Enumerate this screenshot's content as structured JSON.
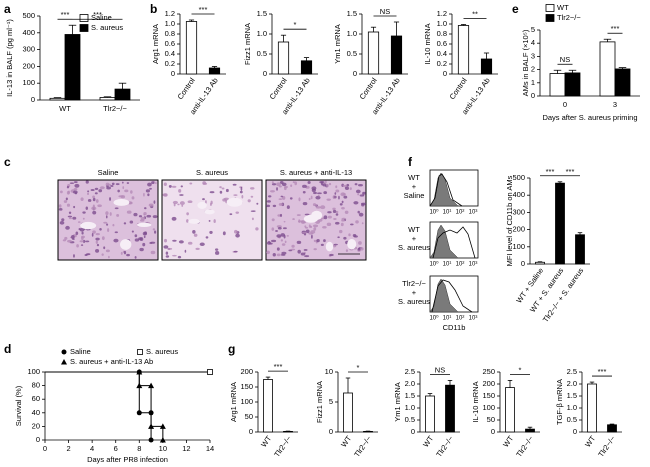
{
  "panel_labels": [
    "a",
    "b",
    "c",
    "d",
    "e",
    "f",
    "g"
  ],
  "histology": {
    "labels": [
      "Saline",
      "S. aureus",
      "S. aureus + anti-IL-13"
    ]
  },
  "flow": {
    "rows": [
      [
        "WT",
        "+",
        "Saline"
      ],
      [
        "WT",
        "+",
        "S. aureus"
      ],
      [
        "Tlr2−/−",
        "+",
        "S. aureus"
      ]
    ],
    "xlabel": "CD11b",
    "xticks": [
      "10⁰",
      "10¹",
      "10²",
      "10³"
    ]
  },
  "chart_data": [
    {
      "type": "bar",
      "ylabel": "IL-13 in BALF (pg ml⁻¹)",
      "categories": [
        "WT",
        "Tlr2−/−"
      ],
      "series": [
        {
          "name": "Saline",
          "color": "#ffffff",
          "values": [
            10,
            15
          ],
          "errors": [
            4,
            4
          ]
        },
        {
          "name": "S. aureus",
          "color": "#000000",
          "values": [
            390,
            65
          ],
          "errors": [
            55,
            35
          ]
        }
      ],
      "ylim": [
        0,
        500
      ],
      "yticks": [
        0,
        100,
        200,
        300,
        400,
        500
      ],
      "annotations": [
        "***",
        "***"
      ]
    },
    {
      "type": "bar",
      "ylabel": "Arg1 mRNA",
      "categories": [
        "Control",
        "anti-IL-13 Ab"
      ],
      "values": [
        1.05,
        0.12
      ],
      "errors": [
        0.03,
        0.03
      ],
      "colors": [
        "#ffffff",
        "#000000"
      ],
      "ylim": [
        0,
        1.2
      ],
      "yticks": [
        0,
        0.2,
        0.4,
        0.6,
        0.8,
        {
          "value": 1,
          "label": "1.0"
        },
        1.2
      ],
      "annotations": [
        "***"
      ]
    },
    {
      "type": "bar",
      "ylabel": "Fizz1 mRNA",
      "categories": [
        "Control",
        "anti-IL-13 Ab"
      ],
      "values": [
        0.8,
        0.33
      ],
      "errors": [
        0.17,
        0.08
      ],
      "colors": [
        "#ffffff",
        "#000000"
      ],
      "ylim": [
        0,
        1.5
      ],
      "yticks": [
        0,
        0.5,
        {
          "value": 1,
          "label": "1.0"
        },
        1.5
      ],
      "annotations": [
        "*"
      ]
    },
    {
      "type": "bar",
      "ylabel": "Ym1 mRNA",
      "categories": [
        "Control",
        "anti-IL-13 Ab"
      ],
      "values": [
        1.05,
        0.95
      ],
      "errors": [
        0.12,
        0.35
      ],
      "colors": [
        "#ffffff",
        "#000000"
      ],
      "ylim": [
        0,
        1.5
      ],
      "yticks": [
        0,
        0.5,
        {
          "value": 1,
          "label": "1.0"
        },
        1.5
      ],
      "annotations": [
        "NS"
      ]
    },
    {
      "type": "bar",
      "ylabel": "IL-10 mRNA",
      "categories": [
        "Control",
        "anti-IL-13 Ab"
      ],
      "values": [
        0.97,
        0.3
      ],
      "errors": [
        0.02,
        0.12
      ],
      "colors": [
        "#ffffff",
        "#000000"
      ],
      "ylim": [
        0,
        1.2
      ],
      "yticks": [
        0,
        0.2,
        0.4,
        0.6,
        0.8,
        {
          "value": 1,
          "label": "1.0"
        },
        1.2
      ],
      "annotations": [
        "**"
      ]
    },
    {
      "type": "bar",
      "ylabel": "AMs in BALF (×10⁵)",
      "xlabel": "Days after S. aureus priming",
      "categories": [
        "0",
        "3"
      ],
      "series": [
        {
          "name": "WT",
          "color": "#ffffff",
          "values": [
            1.7,
            4.1
          ],
          "errors": [
            0.25,
            0.2
          ]
        },
        {
          "name": "Tlr2−/−",
          "color": "#000000",
          "values": [
            1.75,
            2.05
          ],
          "errors": [
            0.2,
            0.1
          ]
        }
      ],
      "ylim": [
        0,
        5
      ],
      "yticks": [
        0,
        1,
        2,
        3,
        4,
        5
      ],
      "annotations": [
        "NS",
        "***"
      ]
    },
    {
      "type": "bar",
      "ylabel": "MFI level of CD11b on AMs",
      "categories": [
        "WT + Saline",
        "WT + S. aureus",
        "Tlr2−/− + S. aureus"
      ],
      "values": [
        10,
        470,
        170
      ],
      "errors": [
        3,
        8,
        12
      ],
      "colors": [
        "#ffffff",
        "#000000",
        "#000000"
      ],
      "ylim": [
        0,
        500
      ],
      "yticks": [
        0,
        100,
        200,
        300,
        400,
        500
      ],
      "annotations": [
        "***",
        "***"
      ]
    },
    {
      "type": "line",
      "xlabel": "Days after PR8 infection",
      "ylabel": "Survival (%)",
      "series": [
        {
          "name": "Saline",
          "color": "#000000",
          "marker": "circle",
          "x": [
            0,
            8,
            8,
            9,
            9
          ],
          "values": [
            100,
            100,
            40,
            40,
            0
          ]
        },
        {
          "name": "S. aureus",
          "color": "#000000",
          "marker": "square-open",
          "x": [
            0,
            14
          ],
          "values": [
            100,
            100
          ]
        },
        {
          "name": "S. aureus + anti-IL-13 Ab",
          "color": "#000000",
          "marker": "triangle",
          "x": [
            0,
            8,
            8,
            9,
            9,
            10,
            10
          ],
          "values": [
            100,
            100,
            80,
            80,
            20,
            20,
            0
          ]
        }
      ],
      "xlim": [
        0,
        14
      ],
      "xticks": [
        0,
        2,
        4,
        6,
        8,
        10,
        12,
        14
      ],
      "ylim": [
        0,
        100
      ],
      "yticks": [
        0,
        20,
        40,
        60,
        80,
        100
      ]
    },
    {
      "type": "bar",
      "ylabel": "Arg1 mRNA",
      "categories": [
        "WT",
        "Tlr2−/−"
      ],
      "values": [
        175,
        2
      ],
      "errors": [
        8,
        1
      ],
      "colors": [
        "#ffffff",
        "#000000"
      ],
      "ylim": [
        0,
        200
      ],
      "yticks": [
        0,
        50,
        100,
        150,
        200
      ],
      "annotations": [
        "***"
      ]
    },
    {
      "type": "bar",
      "ylabel": "Fizz1 mRNA",
      "categories": [
        "WT",
        "Tlr2−/−"
      ],
      "values": [
        6.5,
        0.1
      ],
      "errors": [
        2.5,
        0.05
      ],
      "colors": [
        "#ffffff",
        "#000000"
      ],
      "ylim": [
        0,
        10
      ],
      "yticks": [
        0,
        5,
        10
      ],
      "annotations": [
        "*"
      ]
    },
    {
      "type": "bar",
      "ylabel": "Ym1 mRNA",
      "categories": [
        "WT",
        "Tlr2−/−"
      ],
      "values": [
        1.5,
        1.95
      ],
      "errors": [
        0.1,
        0.2
      ],
      "colors": [
        "#ffffff",
        "#000000"
      ],
      "ylim": [
        0,
        2.5
      ],
      "yticks": [
        0,
        0.5,
        {
          "value": 1,
          "label": "1.0"
        },
        1.5,
        {
          "value": 2,
          "label": "2.0"
        },
        2.5
      ],
      "annotations": [
        "NS"
      ]
    },
    {
      "type": "bar",
      "ylabel": "IL-10 mRNA",
      "categories": [
        "WT",
        "Tlr2−/−"
      ],
      "values": [
        185,
        12
      ],
      "errors": [
        30,
        8
      ],
      "colors": [
        "#ffffff",
        "#000000"
      ],
      "ylim": [
        0,
        250
      ],
      "yticks": [
        0,
        50,
        100,
        150,
        200,
        250
      ],
      "annotations": [
        "*"
      ]
    },
    {
      "type": "bar",
      "ylabel": "TGF-β mRNA",
      "categories": [
        "WT",
        "Tlr2−/−"
      ],
      "values": [
        2.0,
        0.3
      ],
      "errors": [
        0.08,
        0.03
      ],
      "colors": [
        "#ffffff",
        "#000000"
      ],
      "ylim": [
        0,
        2.5
      ],
      "yticks": [
        0,
        0.5,
        {
          "value": 1,
          "label": "1.0"
        },
        1.5,
        {
          "value": 2,
          "label": "2.0"
        },
        2.5
      ],
      "annotations": [
        "***"
      ]
    }
  ]
}
